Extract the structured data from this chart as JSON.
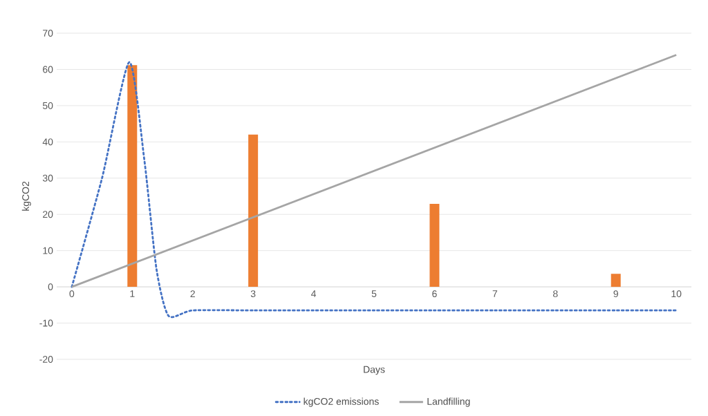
{
  "chart_data": {
    "type": "bar",
    "xlabel": "Days",
    "ylabel": "kgCO2",
    "xlim": [
      -0.25,
      10.25
    ],
    "xticks": [
      0,
      1,
      2,
      3,
      4,
      5,
      6,
      7,
      8,
      9,
      10
    ],
    "ylim": [
      -20,
      70
    ],
    "yticks": [
      -20,
      -10,
      0,
      10,
      20,
      30,
      40,
      50,
      60,
      70
    ],
    "grid": "y",
    "legend": "bottom",
    "series": [
      {
        "color": "#ed7d31",
        "x": [
          1,
          3,
          6,
          9
        ],
        "values": [
          61.2,
          42,
          22.9,
          3.6
        ]
      },
      {
        "type": "line",
        "name": "kgCO2 emissions",
        "color": "#4472c4",
        "line_style": "dotted",
        "x": [
          0,
          0.5,
          0.95,
          1.2,
          1.4,
          1.6,
          2,
          3,
          4,
          5,
          6,
          7,
          8,
          9,
          10
        ],
        "values": [
          0,
          30,
          62,
          35,
          5,
          -8,
          -6.5,
          -6.5,
          -6.5,
          -6.5,
          -6.5,
          -6.5,
          -6.5,
          -6.5,
          -6.5
        ]
      },
      {
        "type": "line",
        "name": "Landfilling",
        "color": "#a5a5a5",
        "line_style": "solid",
        "x": [
          0,
          10
        ],
        "values": [
          0,
          64
        ]
      }
    ]
  }
}
